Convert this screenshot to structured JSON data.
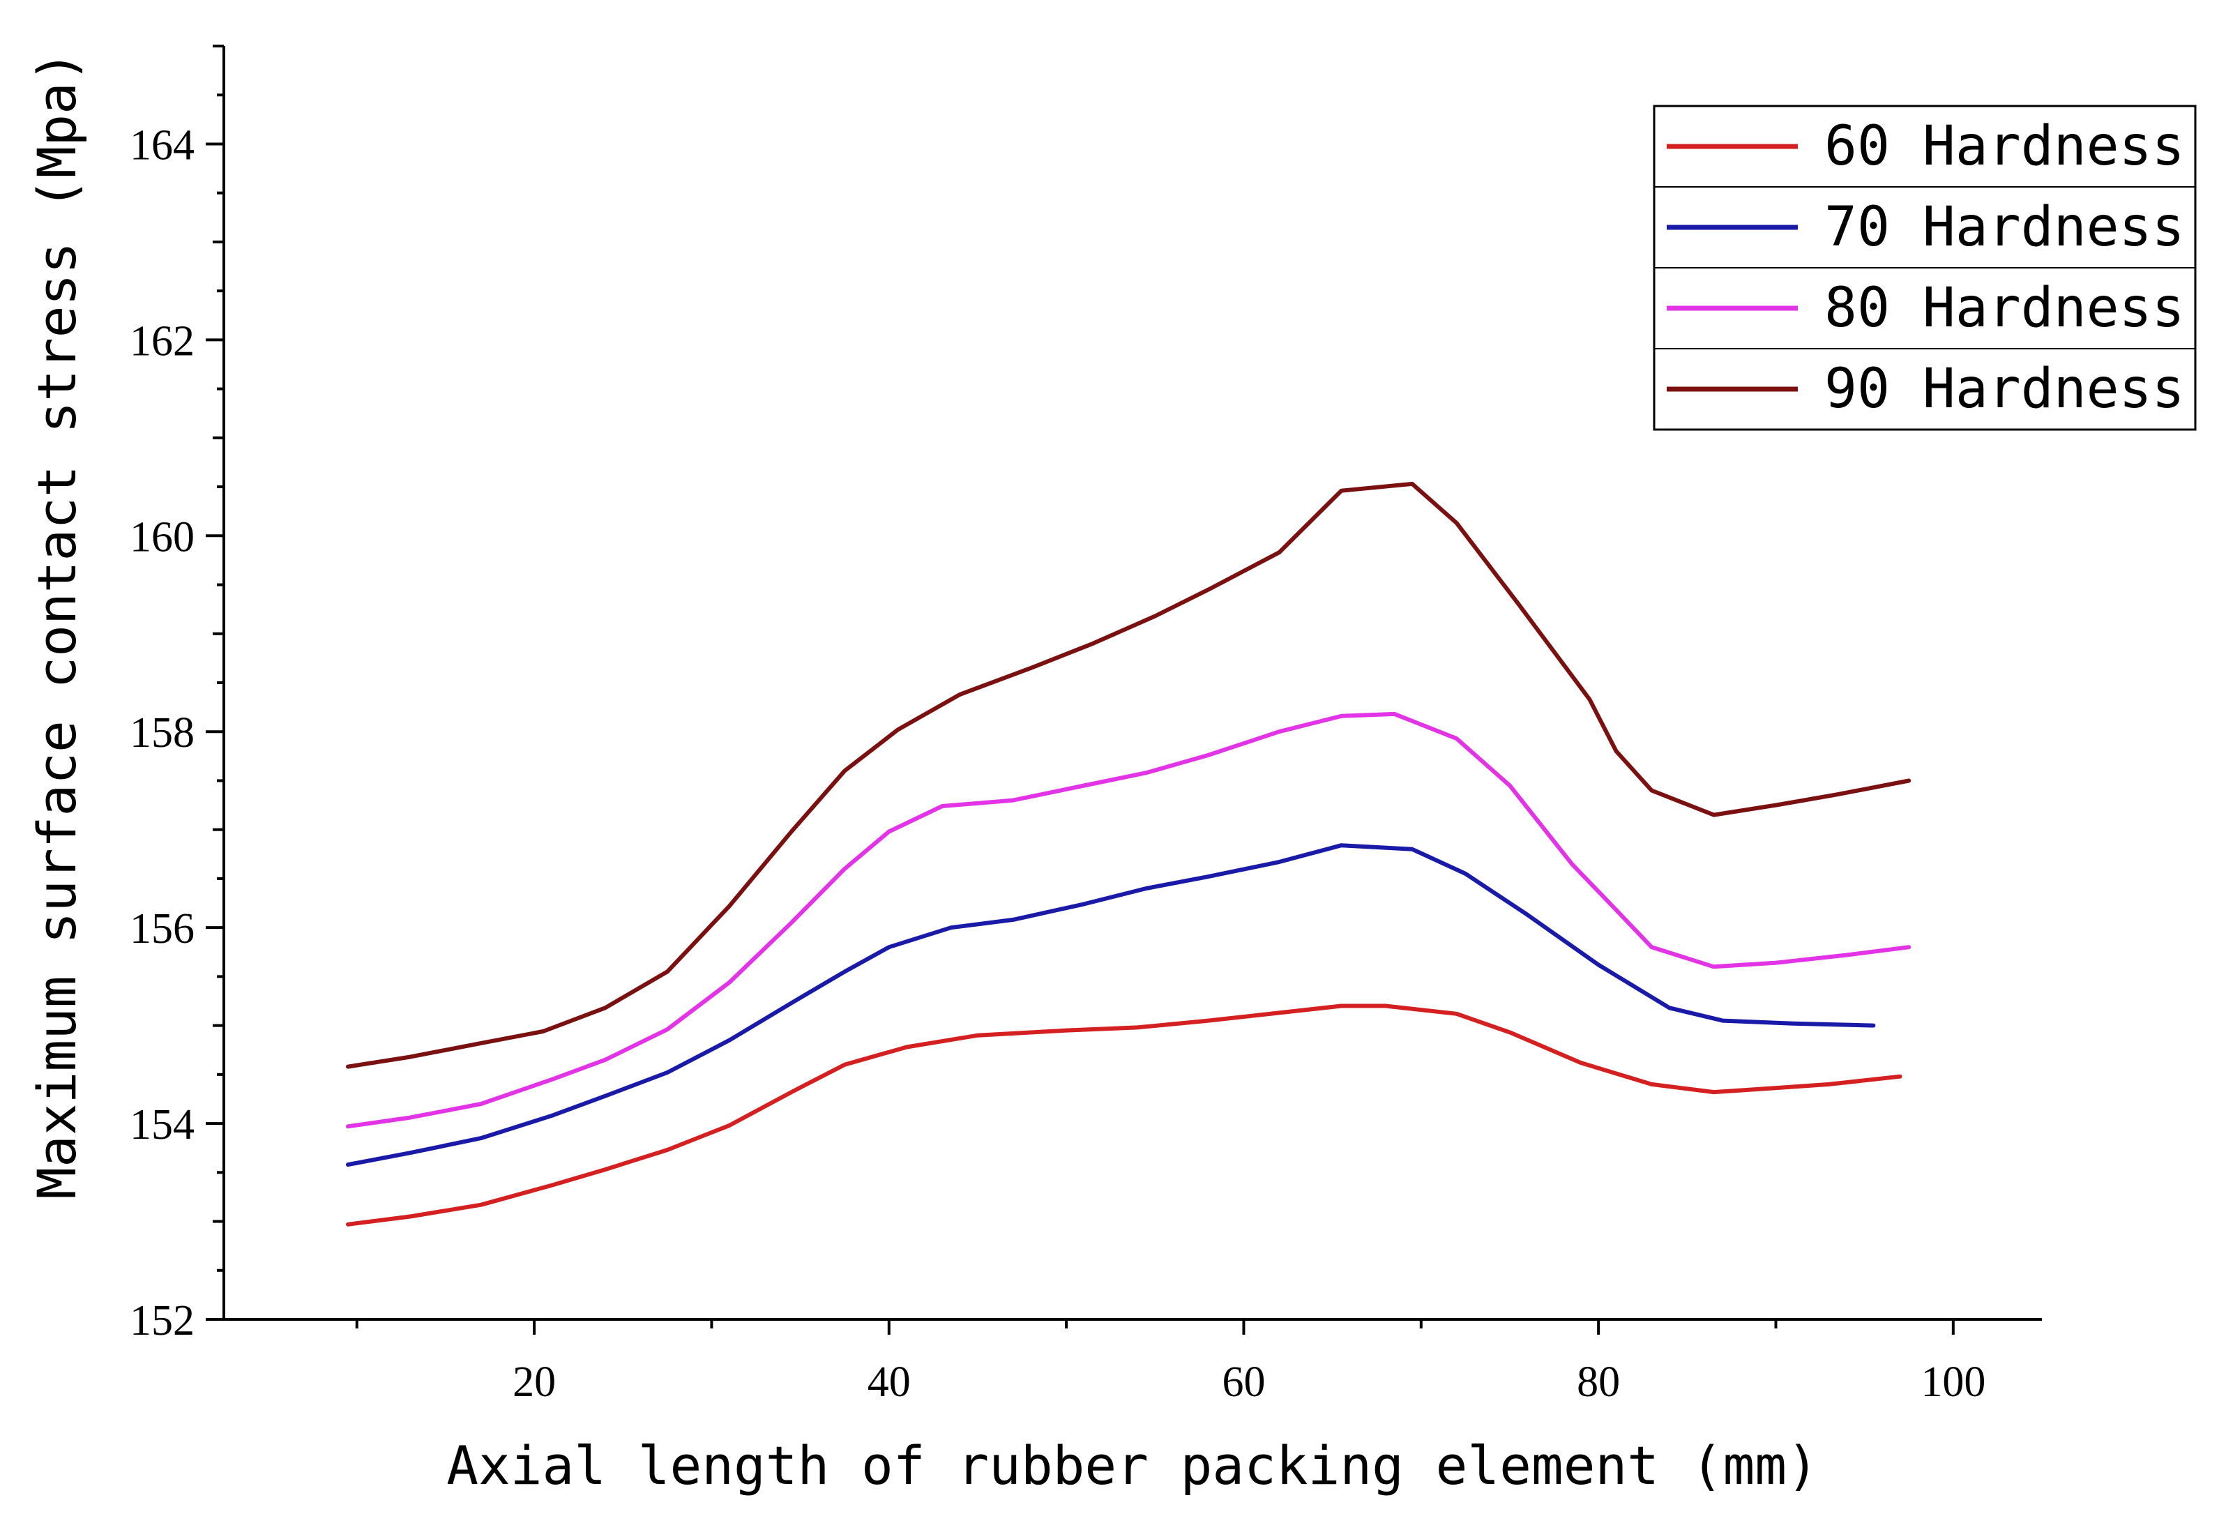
{
  "chart_data": {
    "type": "line",
    "title": "",
    "xlabel": "Axial length of rubber packing element (mm)",
    "ylabel": "Maximum surface contact stress (Mpa)",
    "xlim": [
      2.5,
      105
    ],
    "ylim": [
      152,
      165
    ],
    "xticks": [
      20,
      40,
      60,
      80,
      100
    ],
    "yticks": [
      152,
      154,
      156,
      158,
      160,
      162,
      164
    ],
    "xtick_labels": [
      "20",
      "40",
      "60",
      "80",
      "100"
    ],
    "ytick_labels": [
      "152",
      "154",
      "156",
      "158",
      "160",
      "162",
      "164"
    ],
    "grid": false,
    "legend_position": "top-right",
    "series": [
      {
        "name": "60 Hardness",
        "color": "#d42020",
        "x": [
          9.5,
          13,
          17,
          21,
          24,
          27.5,
          31,
          34.5,
          37.5,
          41,
          45,
          50,
          54,
          58,
          62,
          65.5,
          68,
          72,
          75,
          79,
          83,
          86.5,
          89,
          93,
          97
        ],
        "y": [
          152.97,
          153.05,
          153.17,
          153.37,
          153.53,
          153.73,
          153.98,
          154.32,
          154.6,
          154.78,
          154.9,
          154.95,
          154.98,
          155.05,
          155.13,
          155.2,
          155.2,
          155.12,
          154.93,
          154.62,
          154.4,
          154.32,
          154.35,
          154.4,
          154.48
        ]
      },
      {
        "name": "70 Hardness",
        "color": "#1a1aa8",
        "x": [
          9.5,
          13,
          17,
          21,
          24,
          27.5,
          31,
          34.5,
          37.5,
          40,
          43.5,
          47,
          51,
          54.5,
          58,
          62,
          65.5,
          69.5,
          72.5,
          76,
          80,
          84,
          87,
          91,
          95.5
        ],
        "y": [
          153.58,
          153.7,
          153.85,
          154.08,
          154.28,
          154.52,
          154.85,
          155.23,
          155.55,
          155.8,
          156.0,
          156.08,
          156.24,
          156.4,
          156.52,
          156.67,
          156.84,
          156.8,
          156.55,
          156.13,
          155.62,
          155.18,
          155.05,
          155.02,
          155.0
        ]
      },
      {
        "name": "80 Hardness",
        "color": "#e233e6",
        "x": [
          9.5,
          13,
          17,
          21,
          24,
          27.5,
          31,
          34.5,
          37.5,
          40,
          43,
          47,
          51,
          54.5,
          58,
          62,
          65.5,
          68.5,
          72,
          75,
          78.5,
          81,
          83,
          86.5,
          90,
          94,
          97.5
        ],
        "y": [
          153.97,
          154.06,
          154.2,
          154.45,
          154.65,
          154.96,
          155.44,
          156.05,
          156.6,
          156.98,
          157.24,
          157.3,
          157.45,
          157.58,
          157.76,
          158.0,
          158.16,
          158.18,
          157.93,
          157.45,
          156.65,
          156.18,
          155.8,
          155.6,
          155.64,
          155.72,
          155.8
        ]
      },
      {
        "name": "90 Hardness",
        "color": "#7a1010",
        "x": [
          9.5,
          13,
          17,
          20.5,
          24,
          27.5,
          31,
          34.5,
          37.5,
          40.5,
          44,
          48,
          51.5,
          55,
          58,
          62,
          65.5,
          69.5,
          72,
          75.5,
          79.5,
          81,
          83,
          86.5,
          90,
          93.5,
          97.5
        ],
        "y": [
          154.58,
          154.68,
          154.82,
          154.94,
          155.18,
          155.55,
          156.22,
          156.98,
          157.6,
          158.02,
          158.38,
          158.65,
          158.9,
          159.18,
          159.45,
          159.83,
          160.46,
          160.53,
          160.13,
          159.3,
          158.33,
          157.8,
          157.4,
          157.15,
          157.25,
          157.36,
          157.5
        ]
      }
    ]
  }
}
